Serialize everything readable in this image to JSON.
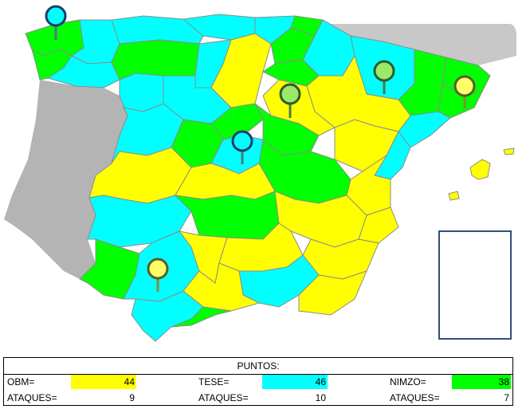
{
  "colors": {
    "OBM": "#ffff00",
    "TESE": "#00ffff",
    "NIMZO": "#00ff00",
    "portugal": "#b4b4b4",
    "border": "#8c8c8c",
    "canary_frame": "#2f4f7f"
  },
  "map": {
    "regions": [
      "OBM",
      "TESE",
      "NIMZO"
    ],
    "pins": [
      {
        "color": "TESE",
        "icon": "map-pin-icon"
      },
      {
        "color": "NIMZO",
        "icon": "map-pin-icon"
      },
      {
        "color": "TESE",
        "icon": "map-pin-icon"
      },
      {
        "color": "NIMZO",
        "icon": "map-pin-icon"
      },
      {
        "color": "OBM",
        "icon": "map-pin-icon"
      },
      {
        "color": "OBM",
        "icon": "map-pin-icon"
      }
    ]
  },
  "score": {
    "title": "PUNTOS:",
    "players": [
      {
        "name": "OBM=",
        "points": "44",
        "attacks_label": "ATAQUES=",
        "attacks": "9"
      },
      {
        "name": "TESE=",
        "points": "46",
        "attacks_label": "ATAQUES=",
        "attacks": "10"
      },
      {
        "name": "NIMZO=",
        "points": "38",
        "attacks_label": "ATAQUES=",
        "attacks": "7"
      }
    ]
  }
}
